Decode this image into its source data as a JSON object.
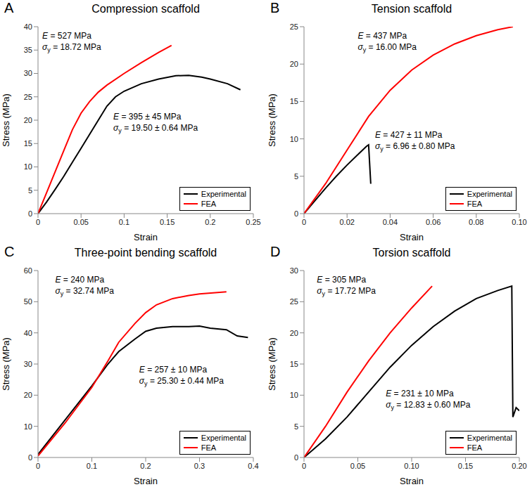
{
  "chart_data": [
    {
      "type": "line",
      "panel": "A",
      "title": "Compression scaffold",
      "x_label": "Strain",
      "y_label": "Stress (MPa)",
      "xlim": [
        0,
        0.25
      ],
      "xticks": [
        0,
        0.05,
        0.1,
        0.15,
        0.2,
        0.25
      ],
      "ylim": [
        0,
        40
      ],
      "yticks": [
        0,
        5,
        10,
        15,
        20,
        25,
        30,
        35,
        40
      ],
      "grid": false,
      "legend": "lower right",
      "annotations": [
        [
          "E = 527 MPa",
          "σy = 18.72 MPa"
        ],
        [
          "E = 395 ± 45 MPa",
          "σy = 19.50 ± 0.64 MPa"
        ]
      ],
      "series": [
        {
          "name": "Experimental",
          "color": "#000000",
          "x": [
            0,
            0.01,
            0.02,
            0.03,
            0.04,
            0.05,
            0.06,
            0.07,
            0.08,
            0.09,
            0.1,
            0.12,
            0.14,
            0.16,
            0.175,
            0.19,
            0.2,
            0.22,
            0.235
          ],
          "values": [
            0,
            2.5,
            5.2,
            8,
            11,
            14,
            17,
            20,
            23,
            25,
            26.2,
            27.8,
            28.8,
            29.5,
            29.6,
            29.2,
            28.8,
            27.8,
            26.5
          ]
        },
        {
          "name": "FEA",
          "color": "#ff0000",
          "x": [
            0,
            0.01,
            0.02,
            0.03,
            0.04,
            0.05,
            0.06,
            0.07,
            0.08,
            0.1,
            0.12,
            0.14,
            0.155
          ],
          "values": [
            0,
            4.5,
            9,
            13.5,
            18,
            21.5,
            24,
            26,
            27.5,
            30,
            32.3,
            34.5,
            36
          ]
        }
      ]
    },
    {
      "type": "line",
      "panel": "B",
      "title": "Tension scaffold",
      "x_label": "Strain",
      "y_label": "Stress (MPa)",
      "xlim": [
        0,
        0.1
      ],
      "xticks": [
        0,
        0.02,
        0.04,
        0.06,
        0.08,
        {
          "value": 0.1,
          "label": "0.10"
        }
      ],
      "ylim": [
        0,
        25
      ],
      "yticks": [
        0,
        5,
        10,
        15,
        20,
        25
      ],
      "grid": false,
      "legend": "lower right",
      "annotations": [
        [
          "E = 437 MPa",
          "σy = 16.00 MPa"
        ],
        [
          "E = 427 ± 11 MPa",
          "σy = 6.96 ± 0.80 MPa"
        ]
      ],
      "series": [
        {
          "name": "Experimental",
          "color": "#000000",
          "x": [
            0,
            0.005,
            0.01,
            0.015,
            0.02,
            0.025,
            0.029,
            0.03,
            0.031
          ],
          "values": [
            0,
            1.7,
            3.4,
            5,
            6.5,
            7.9,
            9,
            9.2,
            4
          ]
        },
        {
          "name": "FEA",
          "color": "#ff0000",
          "x": [
            0,
            0.01,
            0.02,
            0.03,
            0.04,
            0.05,
            0.06,
            0.07,
            0.08,
            0.09,
            0.097
          ],
          "values": [
            0,
            4,
            8.5,
            13,
            16.5,
            19.2,
            21.2,
            22.7,
            23.8,
            24.6,
            25
          ]
        }
      ]
    },
    {
      "type": "line",
      "panel": "C",
      "title": "Three-point bending scaffold",
      "x_label": "Strain",
      "y_label": "Stress (MPa)",
      "xlim": [
        0,
        0.4
      ],
      "xticks": [
        0,
        0.1,
        0.2,
        0.3,
        0.4
      ],
      "ylim": [
        0,
        60
      ],
      "yticks": [
        0,
        10,
        20,
        30,
        40,
        50,
        60
      ],
      "grid": false,
      "legend": "lower right",
      "annotations": [
        [
          "E = 240 MPa",
          "σy = 32.74 MPa"
        ],
        [
          "E = 257 ± 10 MPa",
          "σy = 25.30 ± 0.44 MPa"
        ]
      ],
      "series": [
        {
          "name": "Experimental",
          "color": "#000000",
          "x": [
            0,
            0.05,
            0.1,
            0.13,
            0.15,
            0.18,
            0.2,
            0.22,
            0.25,
            0.28,
            0.3,
            0.32,
            0.35,
            0.37,
            0.39
          ],
          "values": [
            1,
            12,
            23,
            30,
            34,
            38,
            40.5,
            41.5,
            42,
            42,
            42.2,
            41.5,
            41,
            39,
            38.5
          ]
        },
        {
          "name": "FEA",
          "color": "#ff0000",
          "x": [
            0,
            0.05,
            0.1,
            0.13,
            0.15,
            0.18,
            0.2,
            0.22,
            0.25,
            0.28,
            0.3,
            0.35
          ],
          "values": [
            0.5,
            11,
            22.5,
            31,
            37,
            43,
            46.5,
            49,
            51,
            52,
            52.5,
            53.2
          ]
        }
      ]
    },
    {
      "type": "line",
      "panel": "D",
      "title": "Torsion scaffold",
      "x_label": "Strain",
      "y_label": "Stress (MPa)",
      "xlim": [
        0,
        0.2
      ],
      "xticks": [
        0,
        0.05,
        {
          "value": 0.1,
          "label": "0.10"
        },
        0.15,
        {
          "value": 0.2,
          "label": "0.20"
        }
      ],
      "ylim": [
        0,
        30
      ],
      "yticks": [
        0,
        5,
        10,
        15,
        20,
        25,
        30
      ],
      "grid": false,
      "legend": "lower right",
      "annotations": [
        [
          "E = 305 MPa",
          "σy = 17.72 MPa"
        ],
        [
          "E = 231 ± 10 MPa",
          "σy = 12.83 ± 0.60 MPa"
        ]
      ],
      "series": [
        {
          "name": "Experimental",
          "color": "#000000",
          "x": [
            0,
            0.02,
            0.04,
            0.06,
            0.08,
            0.1,
            0.12,
            0.14,
            0.16,
            0.18,
            0.193,
            0.194,
            0.197,
            0.2
          ],
          "values": [
            0,
            3,
            6.5,
            10.5,
            14.5,
            18,
            21,
            23.5,
            25.5,
            26.8,
            27.5,
            6.5,
            8,
            7.5
          ]
        },
        {
          "name": "FEA",
          "color": "#ff0000",
          "x": [
            0,
            0.02,
            0.04,
            0.06,
            0.08,
            0.1,
            0.119
          ],
          "values": [
            0,
            5,
            10.5,
            15.5,
            20,
            24,
            27.5
          ]
        }
      ]
    }
  ]
}
